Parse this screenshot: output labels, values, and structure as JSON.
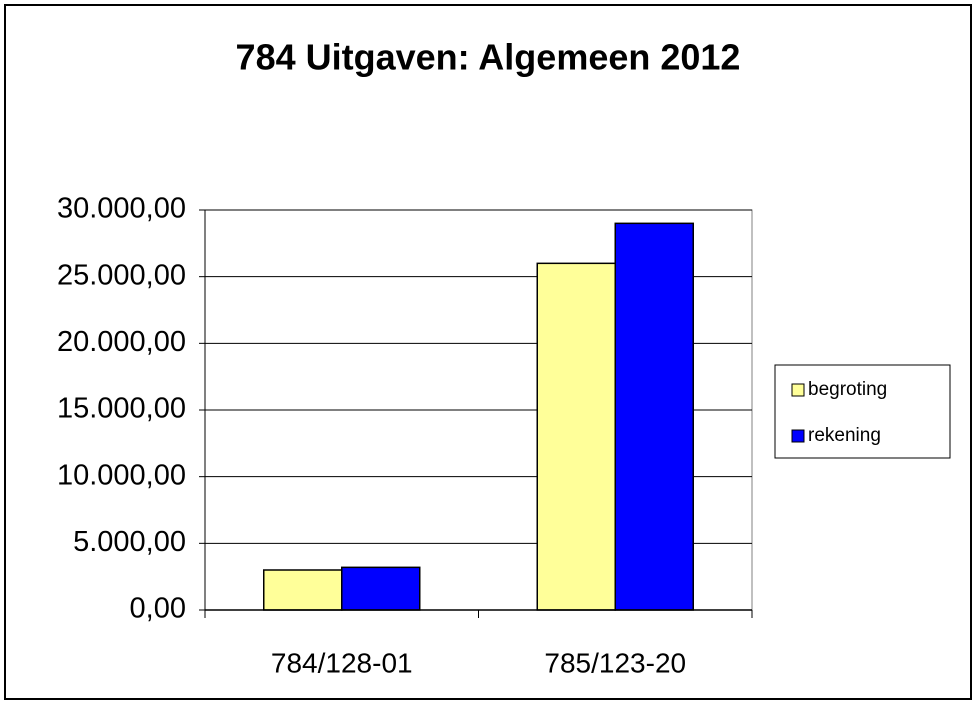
{
  "chart_data": {
    "type": "bar",
    "title": "784 Uitgaven: Algemeen 2012",
    "categories": [
      "784/128-01",
      "785/123-20"
    ],
    "series": [
      {
        "name": "begroting",
        "color": "#ffff99",
        "values": [
          3000,
          26000
        ]
      },
      {
        "name": "rekening",
        "color": "#0000ff",
        "values": [
          3200,
          29000
        ]
      }
    ],
    "ylim": [
      0,
      30000
    ],
    "yticks": [
      {
        "value": 0,
        "label": "0,00"
      },
      {
        "value": 5000,
        "label": "5.000,00"
      },
      {
        "value": 10000,
        "label": "10.000,00"
      },
      {
        "value": 15000,
        "label": "15.000,00"
      },
      {
        "value": 20000,
        "label": "20.000,00"
      },
      {
        "value": 25000,
        "label": "25.000,00"
      },
      {
        "value": 30000,
        "label": "30.000,00"
      }
    ],
    "grid": true,
    "legend": "right"
  }
}
